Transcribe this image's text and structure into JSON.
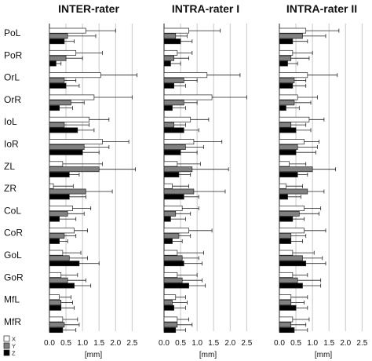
{
  "chart_data": {
    "type": "bar",
    "orientation": "horizontal",
    "categories": [
      "PoL",
      "PoR",
      "OrL",
      "OrR",
      "IoL",
      "IoR",
      "ZL",
      "ZR",
      "CoL",
      "CoR",
      "GoL",
      "GoR",
      "MfL",
      "MfR"
    ],
    "xticks": [
      "0.0",
      "0.5",
      "1.0",
      "1.5",
      "2.0",
      "2.5"
    ],
    "xlabel": "[mm]",
    "xlim": [
      0,
      2.8
    ],
    "grid": "vertical",
    "legend": {
      "entries": [
        "X",
        "Y",
        "Z"
      ],
      "placement": "bottom-left"
    },
    "colors": {
      "X": "#ffffff",
      "Y": "#808080",
      "Z": "#000000"
    },
    "panels": [
      {
        "title": "INTER-rater",
        "series": [
          {
            "name": "X",
            "values": [
              1.1,
              0.8,
              1.55,
              1.35,
              1.2,
              1.6,
              0.4,
              0.12,
              0.7,
              0.75,
              0.4,
              0.35,
              0.3,
              0.4
            ],
            "errors": [
              0.9,
              0.8,
              1.1,
              1.15,
              0.6,
              0.8,
              1.2,
              0.6,
              0.55,
              0.4,
              0.55,
              0.5,
              0.35,
              0.45
            ]
          },
          {
            "name": "Y",
            "values": [
              0.55,
              0.5,
              0.45,
              0.65,
              0.45,
              1.05,
              1.5,
              1.1,
              0.55,
              0.45,
              0.6,
              0.55,
              0.35,
              0.45
            ],
            "errors": [
              0.85,
              0.5,
              0.35,
              0.4,
              0.75,
              0.75,
              1.1,
              0.8,
              0.5,
              0.35,
              0.55,
              0.55,
              0.35,
              0.45
            ]
          },
          {
            "name": "Z",
            "values": [
              0.45,
              0.2,
              0.5,
              0.3,
              0.85,
              1.0,
              0.6,
              0.6,
              0.3,
              0.3,
              0.9,
              0.75,
              0.35,
              0.4
            ],
            "errors": [
              0.3,
              0.15,
              0.4,
              0.4,
              0.5,
              0.5,
              0.3,
              0.5,
              0.5,
              0.25,
              0.6,
              0.5,
              0.4,
              0.4
            ]
          }
        ]
      },
      {
        "title": "INTRA-rater I",
        "series": [
          {
            "name": "X",
            "values": [
              0.75,
              0.4,
              1.3,
              1.45,
              0.8,
              0.9,
              0.4,
              0.25,
              0.55,
              0.75,
              0.4,
              0.4,
              0.35,
              0.4
            ],
            "errors": [
              0.95,
              0.45,
              1.0,
              1.05,
              0.55,
              0.85,
              0.7,
              0.5,
              0.5,
              0.7,
              0.8,
              0.6,
              0.3,
              0.35
            ]
          },
          {
            "name": "Y",
            "values": [
              0.35,
              0.3,
              0.6,
              0.6,
              0.3,
              0.65,
              0.85,
              0.9,
              0.35,
              0.45,
              0.55,
              0.55,
              0.25,
              0.4
            ],
            "errors": [
              0.35,
              0.45,
              0.4,
              0.4,
              0.35,
              0.55,
              1.1,
              0.95,
              0.45,
              0.35,
              0.5,
              0.6,
              0.45,
              0.45
            ]
          },
          {
            "name": "Z",
            "values": [
              0.5,
              0.2,
              0.3,
              0.25,
              0.6,
              0.5,
              0.45,
              0.6,
              0.2,
              0.25,
              0.6,
              0.75,
              0.3,
              0.35
            ],
            "errors": [
              0.35,
              0.3,
              0.35,
              0.4,
              0.45,
              0.5,
              0.35,
              0.45,
              0.45,
              0.3,
              0.55,
              0.5,
              0.35,
              0.3
            ]
          }
        ]
      },
      {
        "title": "INTRA-rater II",
        "series": [
          {
            "name": "X",
            "values": [
              0.8,
              0.4,
              0.85,
              0.55,
              0.9,
              0.75,
              0.3,
              0.2,
              0.75,
              0.75,
              0.4,
              0.4,
              0.35,
              0.4
            ],
            "errors": [
              1.0,
              0.6,
              0.9,
              0.6,
              0.45,
              0.45,
              0.5,
              0.5,
              0.5,
              0.65,
              0.65,
              0.45,
              0.5,
              0.5
            ]
          },
          {
            "name": "Y",
            "values": [
              0.7,
              0.35,
              0.45,
              0.45,
              0.35,
              0.55,
              1.0,
              0.85,
              0.6,
              0.35,
              0.7,
              0.55,
              0.35,
              0.35
            ],
            "errors": [
              0.7,
              0.55,
              0.35,
              0.5,
              0.45,
              0.6,
              0.7,
              0.5,
              0.6,
              0.45,
              0.6,
              0.7,
              0.4,
              0.45
            ]
          },
          {
            "name": "Z",
            "values": [
              0.4,
              0.25,
              0.4,
              0.2,
              0.5,
              0.5,
              0.55,
              0.25,
              0.4,
              0.35,
              0.8,
              0.7,
              0.5,
              0.45
            ],
            "errors": [
              0.45,
              0.3,
              0.4,
              0.4,
              0.45,
              0.6,
              0.3,
              0.4,
              0.35,
              0.35,
              0.6,
              0.55,
              0.35,
              0.4
            ]
          }
        ]
      }
    ]
  }
}
